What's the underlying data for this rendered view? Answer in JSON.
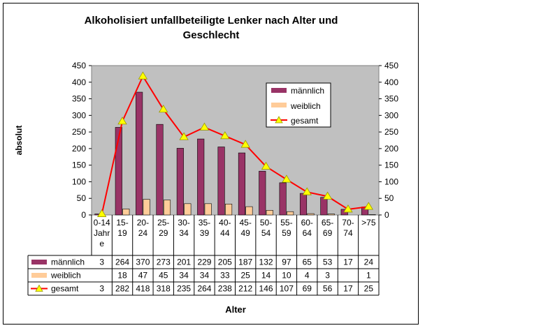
{
  "chart_data": {
    "type": "bar",
    "title_line1": "Alkoholisiert unfallbeteiligte Lenker nach Alter und",
    "title_line2": "Geschlecht",
    "xlabel": "Alter",
    "ylabel": "absolut",
    "ylim": [
      0,
      450
    ],
    "yticks": [
      "0",
      "50",
      "100",
      "150",
      "200",
      "250",
      "300",
      "350",
      "400",
      "450"
    ],
    "categories": [
      "0-14 Jahre",
      "15-19",
      "20-24",
      "25-29",
      "30-34",
      "35-39",
      "40-44",
      "45-49",
      "50-54",
      "55-59",
      "60-64",
      "65-69",
      "70-74",
      ">75"
    ],
    "category_label_lines": [
      [
        "0-14",
        "Jahr",
        "e"
      ],
      [
        "15-",
        "19"
      ],
      [
        "20-",
        "24"
      ],
      [
        "25-",
        "29"
      ],
      [
        "30-",
        "34"
      ],
      [
        "35-",
        "39"
      ],
      [
        "40-",
        "44"
      ],
      [
        "45-",
        "49"
      ],
      [
        "50-",
        "54"
      ],
      [
        "55-",
        "59"
      ],
      [
        "60-",
        "64"
      ],
      [
        "65-",
        "69"
      ],
      [
        "70-",
        "74"
      ],
      [
        ">75"
      ]
    ],
    "series": [
      {
        "name": "männlich",
        "kind": "bar",
        "color": "#993366",
        "values": [
          3,
          264,
          370,
          273,
          201,
          229,
          205,
          187,
          132,
          97,
          65,
          53,
          17,
          24
        ]
      },
      {
        "name": "weiblich",
        "kind": "bar",
        "color": "#FFCC99",
        "values": [
          null,
          18,
          47,
          45,
          34,
          34,
          33,
          25,
          14,
          10,
          4,
          3,
          null,
          1
        ]
      },
      {
        "name": "gesamt",
        "kind": "line",
        "color": "#FF0000",
        "marker_color": "#FFFF00",
        "values": [
          3,
          282,
          418,
          318,
          235,
          264,
          238,
          212,
          146,
          107,
          69,
          56,
          17,
          25
        ]
      }
    ],
    "legend_position": "top-right",
    "plot_background": "#C0C0C0",
    "grid": false,
    "secondary_y_axis": true,
    "data_table": true
  }
}
